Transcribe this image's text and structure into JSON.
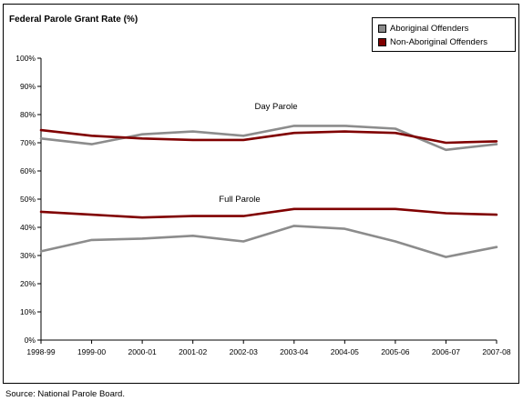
{
  "chart_data": {
    "type": "line",
    "title": "Federal Parole Grant Rate (%)",
    "x": [
      "1998-99",
      "1999-00",
      "2000-01",
      "2001-02",
      "2002-03",
      "2003-04",
      "2004-05",
      "2005-06",
      "2006-07",
      "2007-08"
    ],
    "ylim": [
      0,
      100
    ],
    "yticks": [
      "0%",
      "10%",
      "20%",
      "30%",
      "40%",
      "50%",
      "60%",
      "70%",
      "80%",
      "90%",
      "100%"
    ],
    "legend_position": "top-right",
    "legend": [
      {
        "name": "Aboriginal Offenders",
        "color": "#8c8c8c"
      },
      {
        "name": "Non-Aboriginal Offenders",
        "color": "#800000"
      }
    ],
    "groups": [
      {
        "label": "Day Parole",
        "series": [
          {
            "legend_index": 0,
            "values": [
              71.5,
              69.5,
              73,
              74,
              72.5,
              76,
              76,
              75,
              67.5,
              69.5
            ]
          },
          {
            "legend_index": 1,
            "values": [
              74.5,
              72.5,
              71.5,
              71,
              71,
              73.5,
              74,
              73.5,
              70,
              70.5
            ]
          }
        ]
      },
      {
        "label": "Full Parole",
        "series": [
          {
            "legend_index": 0,
            "values": [
              31.5,
              35.5,
              36,
              37,
              35,
              40.5,
              39.5,
              35,
              29.5,
              33
            ]
          },
          {
            "legend_index": 1,
            "values": [
              45.5,
              44.5,
              43.5,
              44,
              44,
              46.5,
              46.5,
              46.5,
              45,
              44.5
            ]
          }
        ]
      }
    ]
  },
  "source": "Source:  National Parole Board."
}
